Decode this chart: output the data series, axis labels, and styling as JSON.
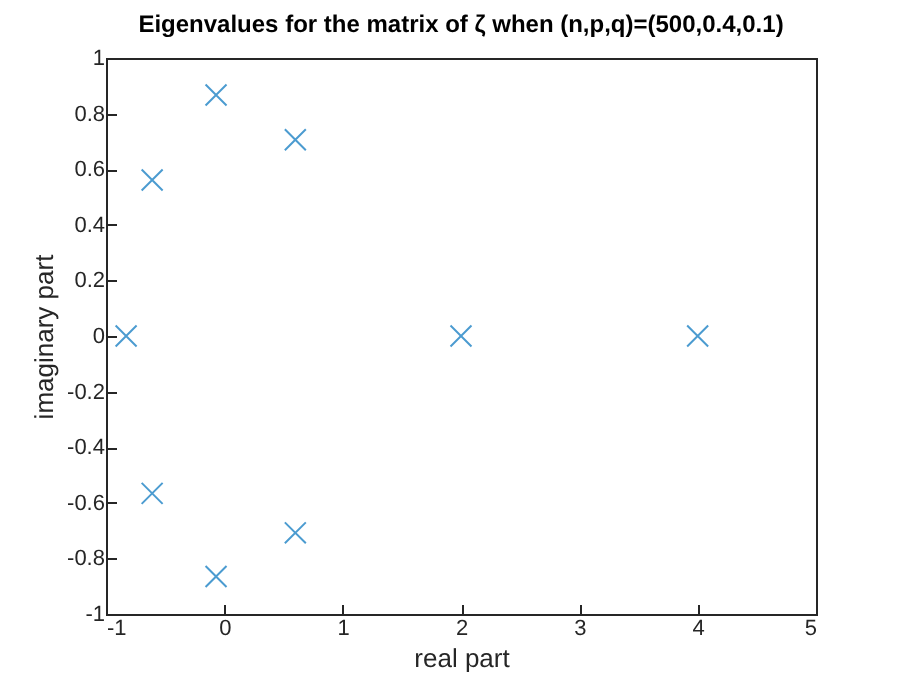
{
  "chart_data": {
    "type": "scatter",
    "title": "Eigenvalues for the matrix of  ζ when (n,p,q)=(500,0.4,0.1)",
    "xlabel": "real part",
    "ylabel": "imaginary part",
    "x": [
      -0.83,
      -0.61,
      -0.61,
      -0.07,
      -0.07,
      0.6,
      0.6,
      2,
      4
    ],
    "series": [
      {
        "color": "#0072bd",
        "values": [
          0,
          0.561,
          -0.566,
          0.867,
          -0.865,
          0.706,
          -0.708,
          0,
          0
        ]
      }
    ],
    "marker": "cross",
    "xlim": [
      -1,
      5
    ],
    "xticks": [
      -1,
      0,
      1,
      2,
      3,
      4,
      5
    ],
    "ylim": [
      -1,
      1
    ],
    "yticks": [
      -1,
      -0.8,
      -0.6,
      -0.4,
      -0.2,
      0,
      0.2,
      0.4,
      0.6,
      0.8,
      1
    ],
    "grid": false
  }
}
